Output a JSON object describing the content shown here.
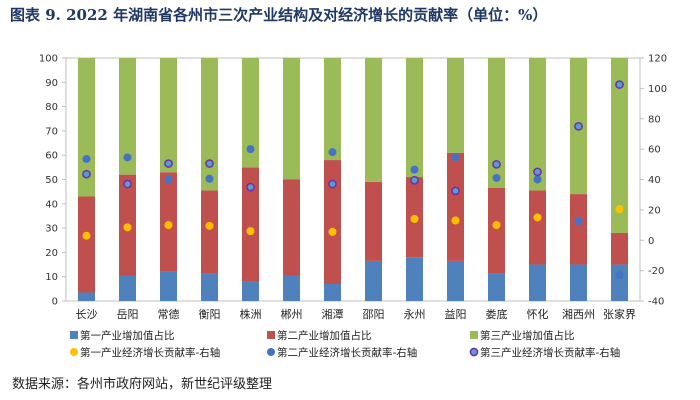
{
  "page": {
    "title": "图表 9. 2022 年湖南省各州市三次产业结构及对经济增长的贡献率（单位：%）",
    "source": "数据来源：各州市政府网站，新世纪评级整理"
  },
  "chart_data": {
    "type": "bar",
    "stacked": true,
    "title": "图表 9. 2022 年湖南省各州市三次产业结构及对经济增长的贡献率（单位：%）",
    "categories": [
      "长沙",
      "岳阳",
      "常德",
      "衡阳",
      "株洲",
      "郴州",
      "湘潭",
      "邵阳",
      "永州",
      "益阳",
      "娄底",
      "怀化",
      "湘西州",
      "张家界"
    ],
    "ylim": [
      0,
      100
    ],
    "yticks": [
      0,
      10,
      20,
      30,
      40,
      50,
      60,
      70,
      80,
      90,
      100
    ],
    "y2lim": [
      -40,
      120
    ],
    "y2ticks": [
      -40,
      -20,
      0,
      20,
      40,
      60,
      80,
      100,
      120
    ],
    "grid": false,
    "series": [
      {
        "name": "第一产业增加值占比",
        "kind": "bar",
        "axis": "left",
        "color": "#4f81bd",
        "values": [
          3.5,
          10.5,
          12,
          11.5,
          8,
          10.5,
          7,
          16.5,
          18,
          16.5,
          11.5,
          15,
          15,
          15
        ]
      },
      {
        "name": "第二产业增加值占比",
        "kind": "bar",
        "axis": "left",
        "color": "#c0504d",
        "values": [
          39.5,
          41.5,
          41,
          34,
          47,
          39.5,
          51,
          32.5,
          33,
          44.5,
          35,
          30.5,
          29,
          13
        ]
      },
      {
        "name": "第三产业增加值占比",
        "kind": "bar",
        "axis": "left",
        "color": "#9bbb59",
        "values": [
          57,
          48,
          47,
          54.5,
          45,
          50,
          42,
          51,
          49,
          39,
          53.5,
          54.5,
          56,
          72
        ]
      },
      {
        "name": "第一产业经济增长贡献率-右轴",
        "kind": "point",
        "axis": "right",
        "color": "#ffc000",
        "values": [
          3,
          8.5,
          10,
          9.5,
          6,
          null,
          5.5,
          null,
          14,
          13,
          10,
          15,
          null,
          20.5
        ]
      },
      {
        "name": "第二产业经济增长贡献率-右轴",
        "kind": "point",
        "axis": "right",
        "color": "#4472c4",
        "values": [
          53.5,
          54.5,
          40,
          40.5,
          60,
          null,
          58,
          null,
          46.5,
          54.5,
          41,
          40,
          12.5,
          -23
        ]
      },
      {
        "name": "第三产业经济增长贡献率-右轴",
        "kind": "point",
        "axis": "right",
        "color": "#7030a0",
        "values": [
          43.5,
          37,
          50.5,
          50.5,
          35,
          null,
          37,
          null,
          39.5,
          32.5,
          50,
          45,
          75,
          102.5
        ]
      }
    ],
    "legend": {
      "position": "bottom",
      "items": [
        "第一产业增加值占比",
        "第二产业增加值占比",
        "第三产业增加值占比",
        "第一产业经济增长贡献率-右轴",
        "第二产业经济增长贡献率-右轴",
        "第三产业经济增长贡献率-右轴"
      ]
    }
  }
}
